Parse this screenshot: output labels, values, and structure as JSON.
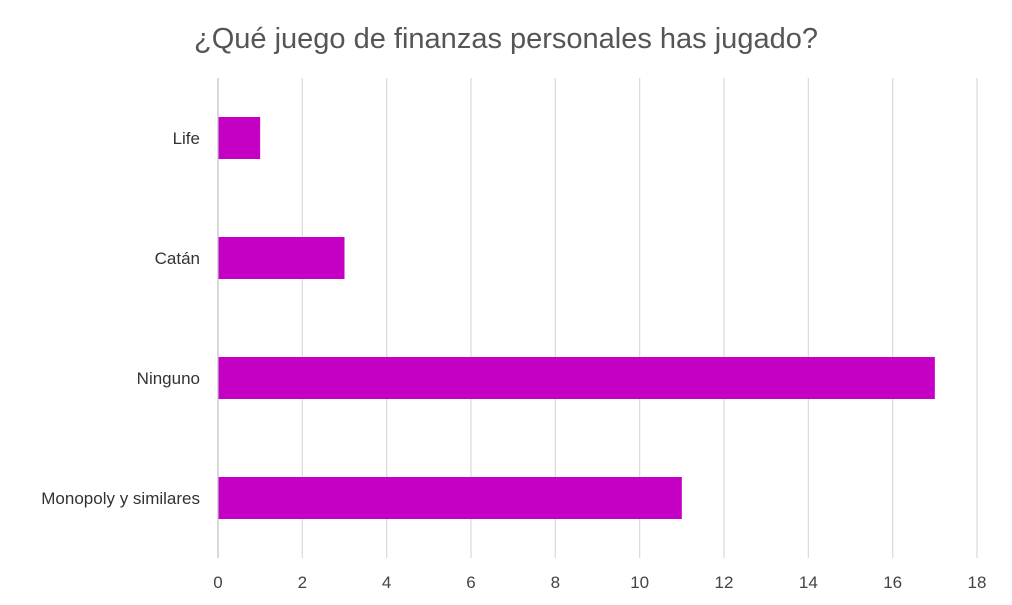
{
  "chart_data": {
    "type": "bar",
    "orientation": "horizontal",
    "title": "¿Qué juego de finanzas personales has jugado?",
    "categories": [
      "Life",
      "Catán",
      "Ninguno",
      "Monopoly y similares"
    ],
    "values": [
      1,
      3,
      17,
      11
    ],
    "xlim": [
      0,
      18
    ],
    "xticks": [
      0,
      2,
      4,
      6,
      8,
      10,
      12,
      14,
      16,
      18
    ],
    "xlabel": "",
    "ylabel": "",
    "grid": "vertical",
    "legend": "none",
    "bar_color": "#c400c4"
  }
}
